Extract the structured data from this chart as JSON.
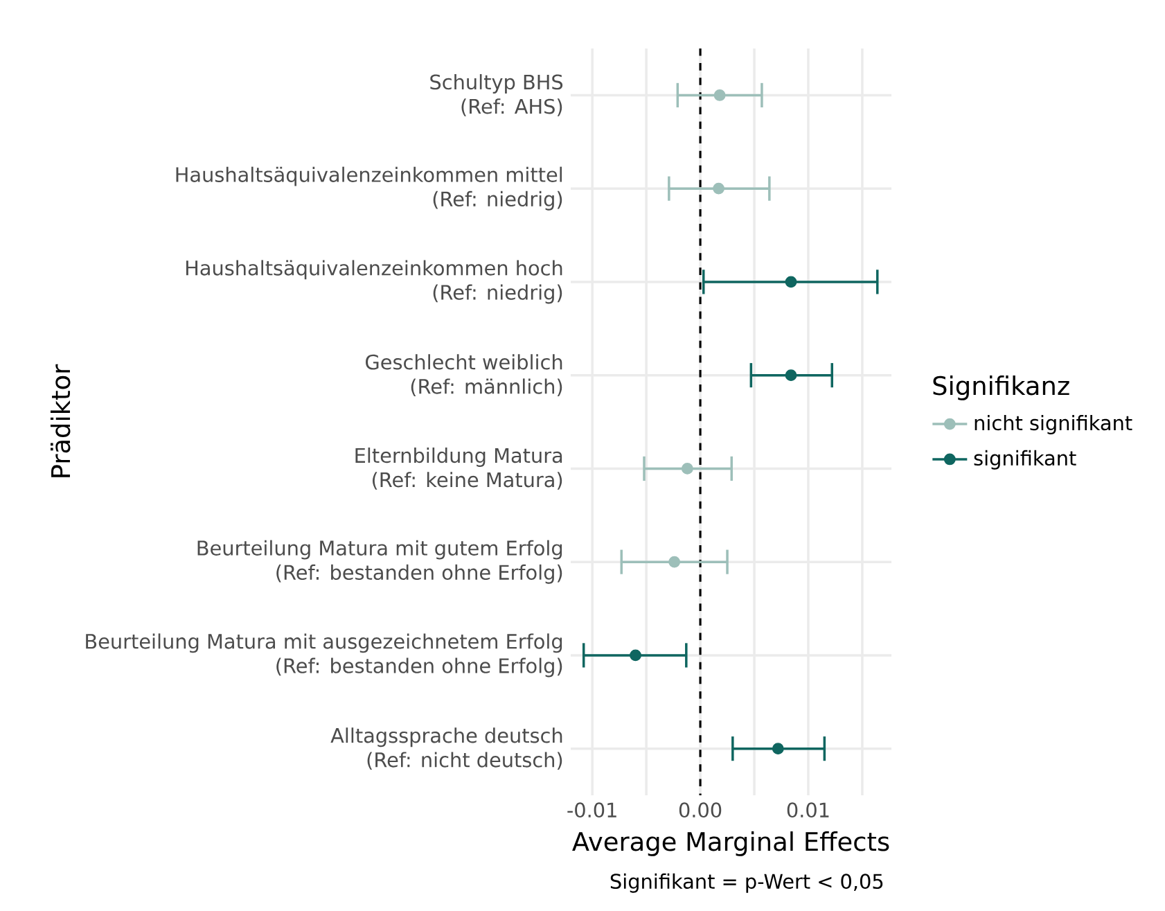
{
  "chart_data": {
    "type": "scatter",
    "orientation": "horizontal",
    "categories": [
      "Schultyp BHS\n(Ref: AHS)",
      "Haushaltsäquivalenzeinkommen mittel\n(Ref: niedrig)",
      "Haushaltsäquivalenzeinkommen hoch\n(Ref: niedrig)",
      "Geschlecht weiblich\n(Ref: männlich)",
      "Elternbildung Matura\n(Ref: keine Matura)",
      "Beurteilung Matura mit gutem Erfolg\n(Ref: bestanden ohne Erfolg)",
      "Beurteilung Matura mit ausgezeichnetem Erfolg\n(Ref: bestanden ohne Erfolg)",
      "Alltagssprache deutsch\n(Ref: nicht deutsch)"
    ],
    "series": [
      {
        "name": "nicht signifikant",
        "color": "#9dbfb9",
        "values": [
          0.0018,
          0.0017,
          null,
          null,
          -0.0012,
          -0.0024,
          null,
          null
        ],
        "errors": [
          [
            -0.0021,
            0.0057
          ],
          [
            -0.0029,
            0.0064
          ],
          null,
          null,
          [
            -0.0052,
            0.0029
          ],
          [
            -0.0073,
            0.0025
          ],
          null,
          null
        ]
      },
      {
        "name": "signifikant",
        "color": "#0f6660",
        "values": [
          null,
          null,
          0.0084,
          0.0084,
          null,
          null,
          -0.006,
          0.0072
        ],
        "errors": [
          null,
          null,
          [
            0.0003,
            0.0164
          ],
          [
            0.0047,
            0.0122
          ],
          null,
          null,
          [
            -0.0108,
            -0.0013
          ],
          [
            0.003,
            0.0115
          ]
        ]
      }
    ],
    "xlim": [
      -0.012,
      0.0177
    ],
    "xticks": [
      -0.01,
      {
        "value": -0.005,
        "label": null
      },
      {
        "value": 0,
        "label": "0.00"
      },
      {
        "value": 0.005,
        "label": null
      },
      0.01,
      {
        "value": 0.015,
        "label": null
      }
    ],
    "xlabel": "Average Marginal Effects",
    "ylabel": "Prädiktor",
    "legend_title": "Signifikanz",
    "annotations": [
      "Signifikant = p-Wert < 0,05"
    ],
    "ref_lines": [
      {
        "axis": "x",
        "value": 0,
        "color": "#000000",
        "line_style": "dashed"
      }
    ],
    "grid": true,
    "legend": "right",
    "marker": "circle"
  }
}
